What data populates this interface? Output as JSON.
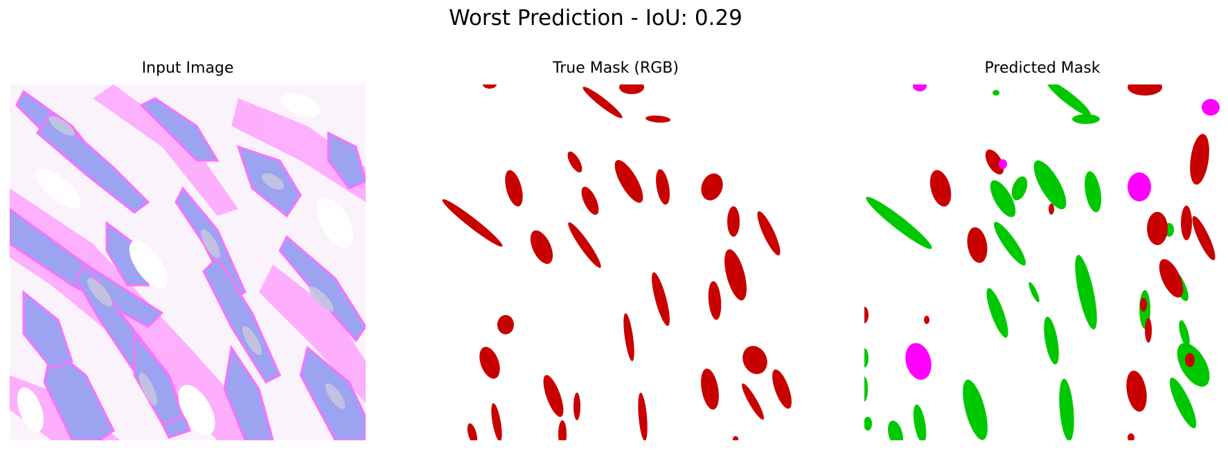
{
  "figure": {
    "suptitle": "Worst Prediction - IoU: 0.29"
  },
  "panels": [
    {
      "id": "input",
      "title": "Input Image"
    },
    {
      "id": "true_mask",
      "title": "True Mask (RGB)"
    },
    {
      "id": "predicted_mask",
      "title": "Predicted Mask"
    }
  ],
  "colors": {
    "mask_red": "#c80000",
    "mask_green": "#00c800",
    "mask_magenta": "#ff00ff",
    "tissue_blue": "#9ca3f0",
    "tissue_gray": "#c6c6e0",
    "tissue_pink": "#ff70ff"
  }
}
